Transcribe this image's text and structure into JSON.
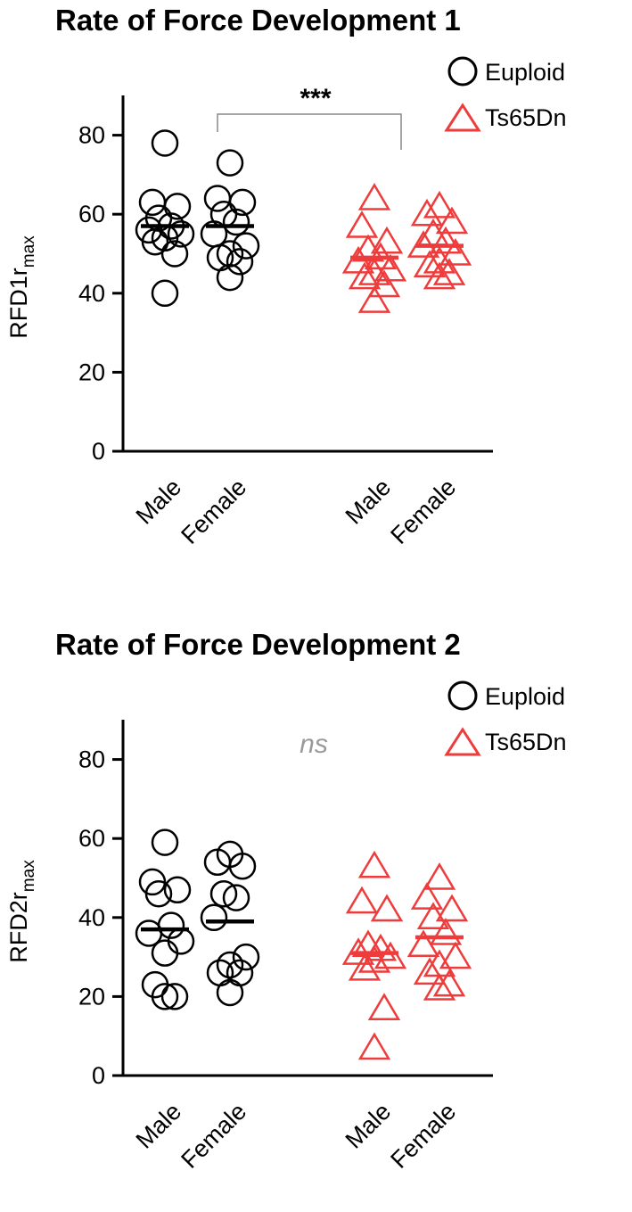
{
  "colors": {
    "euploid": "#000000",
    "ts65dn": "#ee3c3c",
    "ns_text": "#999999",
    "bracket": "#888888"
  },
  "legend": [
    {
      "name": "Euploid",
      "marker": "open-circle"
    },
    {
      "name": "Ts65Dn",
      "marker": "open-triangle"
    }
  ],
  "chart_data": [
    {
      "type": "scatter",
      "title": "Rate of Force Development 1",
      "ylabel_main": "RFD1r",
      "ylabel_sub": "max",
      "ylim": [
        0,
        90
      ],
      "yticks": [
        0,
        20,
        40,
        60,
        80
      ],
      "categories": [
        "Male",
        "Female",
        "Male",
        "Female"
      ],
      "significance": "***",
      "series": [
        {
          "name": "Euploid",
          "group": "Euploid Male",
          "values": [
            78,
            63,
            62,
            59,
            57,
            56,
            55,
            54,
            53,
            50,
            40
          ],
          "mean": 57
        },
        {
          "name": "Euploid",
          "group": "Euploid Female",
          "values": [
            73,
            64,
            63,
            60,
            58,
            55,
            52,
            50,
            49,
            48,
            44
          ],
          "mean": 57
        },
        {
          "name": "Ts65Dn",
          "group": "Ts65Dn Male",
          "values": [
            64,
            57,
            53,
            51,
            49,
            48,
            46,
            45,
            44,
            42,
            38
          ],
          "mean": 49
        },
        {
          "name": "Ts65Dn",
          "group": "Ts65Dn Female",
          "values": [
            62,
            60,
            58,
            55,
            53,
            52,
            50,
            48,
            47,
            45,
            44
          ],
          "mean": 52
        }
      ]
    },
    {
      "type": "scatter",
      "title": "Rate of Force Development 2",
      "ylabel_main": "RFD2r",
      "ylabel_sub": "max",
      "ylim": [
        0,
        90
      ],
      "yticks": [
        0,
        20,
        40,
        60,
        80
      ],
      "categories": [
        "Male",
        "Female",
        "Male",
        "Female"
      ],
      "significance": "ns",
      "series": [
        {
          "name": "Euploid",
          "group": "Euploid Male",
          "values": [
            59,
            49,
            47,
            46,
            38,
            36,
            34,
            31,
            23,
            20,
            20
          ],
          "mean": 37
        },
        {
          "name": "Euploid",
          "group": "Euploid Female",
          "values": [
            56,
            54,
            53,
            46,
            45,
            40,
            30,
            28,
            26,
            26,
            21
          ],
          "mean": 39
        },
        {
          "name": "Ts65Dn",
          "group": "Ts65Dn Male",
          "values": [
            53,
            44,
            42,
            33,
            32,
            31,
            30,
            29,
            27,
            17,
            7
          ],
          "mean": 31
        },
        {
          "name": "Ts65Dn",
          "group": "Ts65Dn Female",
          "values": [
            50,
            45,
            42,
            40,
            36,
            33,
            30,
            28,
            26,
            23,
            22
          ],
          "mean": 35
        }
      ]
    }
  ]
}
